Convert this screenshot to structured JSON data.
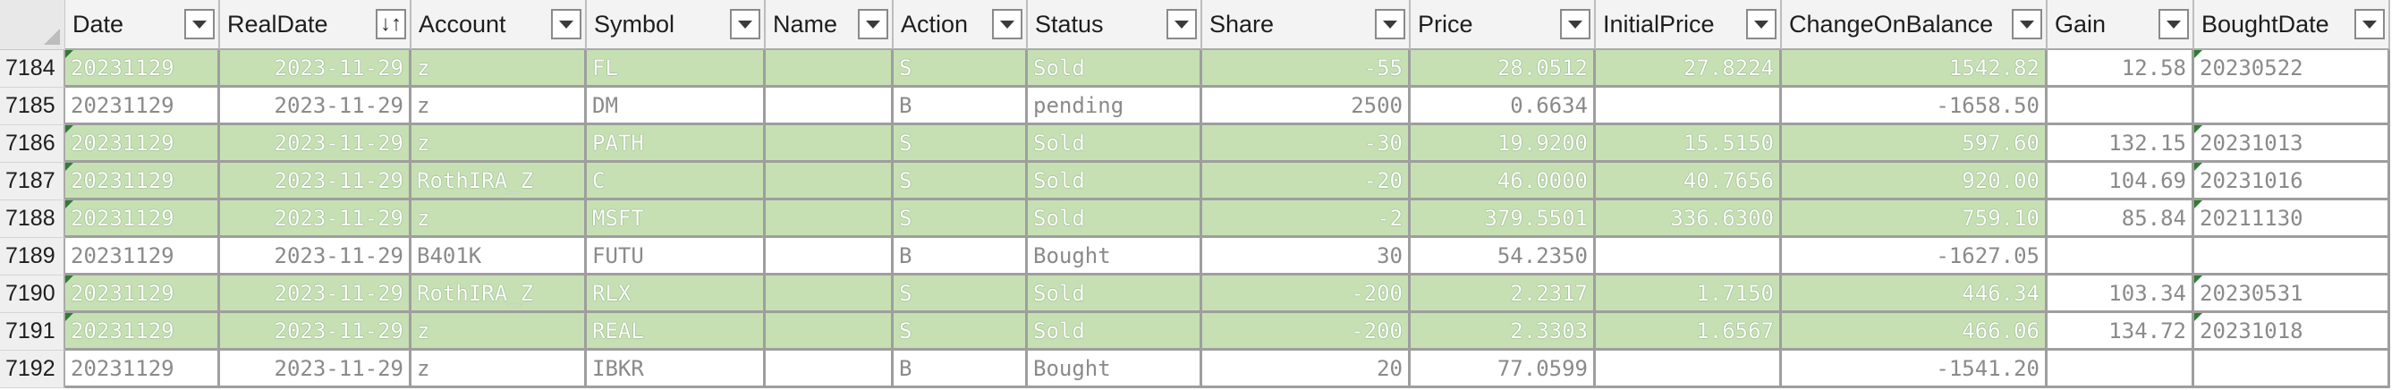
{
  "columns": [
    {
      "key": "date",
      "label": "Date",
      "sorted": false
    },
    {
      "key": "realdate",
      "label": "RealDate",
      "sorted": true
    },
    {
      "key": "account",
      "label": "Account",
      "sorted": false
    },
    {
      "key": "symbol",
      "label": "Symbol",
      "sorted": false
    },
    {
      "key": "name",
      "label": "Name",
      "sorted": false
    },
    {
      "key": "action",
      "label": "Action",
      "sorted": false
    },
    {
      "key": "status",
      "label": "Status",
      "sorted": false
    },
    {
      "key": "share",
      "label": "Share",
      "sorted": false
    },
    {
      "key": "price",
      "label": "Price",
      "sorted": false
    },
    {
      "key": "initialprice",
      "label": "InitialPrice",
      "sorted": false
    },
    {
      "key": "changeonbalance",
      "label": "ChangeOnBalance",
      "sorted": false
    },
    {
      "key": "gain",
      "label": "Gain",
      "sorted": false
    },
    {
      "key": "boughtdate",
      "label": "BoughtDate",
      "sorted": false
    }
  ],
  "sort_indicator": "↓↑",
  "colors": {
    "green_fill": "#c6e0b4",
    "header_fill": "#f3f3f3",
    "flag": "#2e7d32"
  },
  "rows": [
    {
      "num": "7184",
      "fill": "green",
      "date": "20231129",
      "realdate": "2023-11-29",
      "account": "z",
      "symbol": "FL",
      "name": "",
      "action": "S",
      "status": "Sold",
      "share": "-55",
      "price": "28.0512",
      "initialprice": "27.8224",
      "changeonbalance": "1542.82",
      "gain": "12.58",
      "boughtdate": "20230522",
      "gain_white": true,
      "bought_white": true
    },
    {
      "num": "7185",
      "fill": "white",
      "date": "20231129",
      "realdate": "2023-11-29",
      "account": "z",
      "symbol": "DM",
      "name": "",
      "action": "B",
      "status": "pending",
      "share": "2500",
      "price": "0.6634",
      "initialprice": "",
      "changeonbalance": "-1658.50",
      "gain": "",
      "boughtdate": ""
    },
    {
      "num": "7186",
      "fill": "green",
      "date": "20231129",
      "realdate": "2023-11-29",
      "account": "z",
      "symbol": "PATH",
      "name": "",
      "action": "S",
      "status": "Sold",
      "share": "-30",
      "price": "19.9200",
      "initialprice": "15.5150",
      "changeonbalance": "597.60",
      "gain": "132.15",
      "boughtdate": "20231013",
      "gain_white": true,
      "bought_white": true
    },
    {
      "num": "7187",
      "fill": "green",
      "date": "20231129",
      "realdate": "2023-11-29",
      "account": "RothIRA_Z",
      "symbol": "C",
      "name": "",
      "action": "S",
      "status": "Sold",
      "share": "-20",
      "price": "46.0000",
      "initialprice": "40.7656",
      "changeonbalance": "920.00",
      "gain": "104.69",
      "boughtdate": "20231016",
      "gain_white": true,
      "bought_white": true
    },
    {
      "num": "7188",
      "fill": "green",
      "date": "20231129",
      "realdate": "2023-11-29",
      "account": "z",
      "symbol": "MSFT",
      "name": "",
      "action": "S",
      "status": "Sold",
      "share": "-2",
      "price": "379.5501",
      "initialprice": "336.6300",
      "changeonbalance": "759.10",
      "gain": "85.84",
      "boughtdate": "20211130",
      "gain_white": true,
      "bought_white": true
    },
    {
      "num": "7189",
      "fill": "white",
      "date": "20231129",
      "realdate": "2023-11-29",
      "account": "B401K",
      "symbol": "FUTU",
      "name": "",
      "action": "B",
      "status": "Bought",
      "share": "30",
      "price": "54.2350",
      "initialprice": "",
      "changeonbalance": "-1627.05",
      "gain": "",
      "boughtdate": ""
    },
    {
      "num": "7190",
      "fill": "green",
      "date": "20231129",
      "realdate": "2023-11-29",
      "account": "RothIRA_Z",
      "symbol": "RLX",
      "name": "",
      "action": "S",
      "status": "Sold",
      "share": "-200",
      "price": "2.2317",
      "initialprice": "1.7150",
      "changeonbalance": "446.34",
      "gain": "103.34",
      "boughtdate": "20230531",
      "gain_white": true,
      "bought_white": true
    },
    {
      "num": "7191",
      "fill": "green",
      "date": "20231129",
      "realdate": "2023-11-29",
      "account": "z",
      "symbol": "REAL",
      "name": "",
      "action": "S",
      "status": "Sold",
      "share": "-200",
      "price": "2.3303",
      "initialprice": "1.6567",
      "changeonbalance": "466.06",
      "gain": "134.72",
      "boughtdate": "20231018",
      "gain_white": true,
      "bought_white": true
    },
    {
      "num": "7192",
      "fill": "white",
      "date": "20231129",
      "realdate": "2023-11-29",
      "account": "z",
      "symbol": "IBKR",
      "name": "",
      "action": "B",
      "status": "Bought",
      "share": "20",
      "price": "77.0599",
      "initialprice": "",
      "changeonbalance": "-1541.20",
      "gain": "",
      "boughtdate": ""
    }
  ]
}
